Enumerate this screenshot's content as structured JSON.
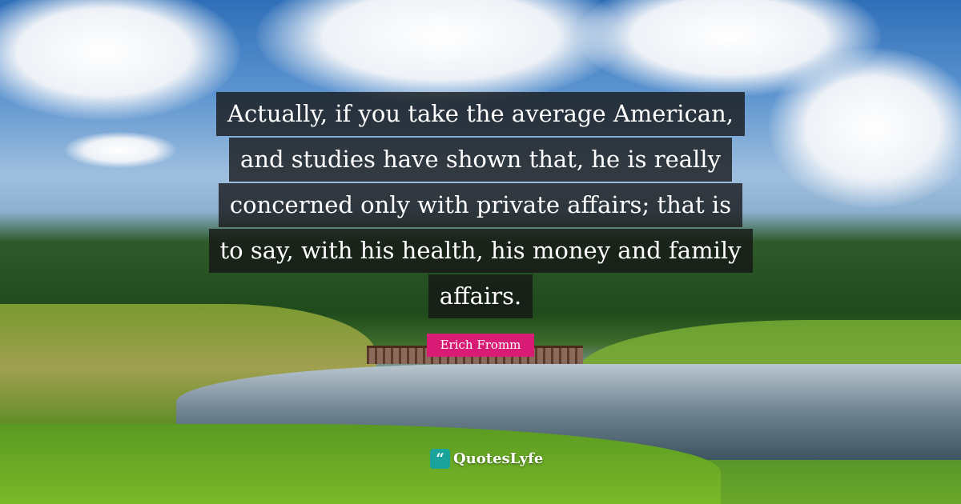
{
  "quote": {
    "lines": [
      "Actually, if you take the average American,",
      "and studies have shown that, he is really",
      "concerned only with private affairs; that is",
      "to say, with his health, his money and family",
      "affairs."
    ]
  },
  "author": "Erich Fromm",
  "brand": {
    "name": "QuotesLyfe",
    "icon": "quote-bubble-icon",
    "icon_color": "#1aa39a"
  },
  "colors": {
    "author_badge": "#d81b74",
    "quote_box": "#141414"
  }
}
